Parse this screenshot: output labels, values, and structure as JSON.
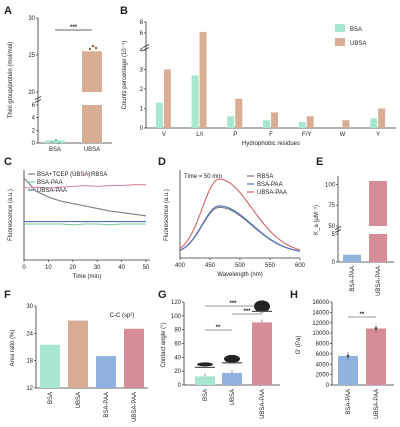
{
  "colors": {
    "bsa": "#a8e6cf",
    "ubsa": "#d9ad94",
    "blue": "#8fb2de",
    "pink": "#d78d97",
    "gray": "#7c7c7c",
    "red": "#d96060",
    "green": "#7dcb9a",
    "blueline": "#4f6fc2"
  },
  "panels": {
    "A": "A",
    "B": "B",
    "C": "C",
    "D": "D",
    "E": "E",
    "F": "F",
    "G": "G",
    "H": "H"
  },
  "chart_data": [
    {
      "id": "A",
      "type": "bar",
      "categories": [
        "BSA",
        "UBSA"
      ],
      "values": [
        0.4,
        25.5
      ],
      "ylabel": "Thiol group/protein (mol/mol)",
      "ylim": [
        0,
        30
      ],
      "yticks": [
        "0",
        "2",
        "4",
        "6",
        "20",
        "25",
        "30"
      ],
      "significance": "***"
    },
    {
      "id": "B",
      "type": "bar",
      "categories": [
        "V",
        "L/I",
        "P",
        "F",
        "F/Y",
        "W",
        "Y"
      ],
      "series": [
        {
          "name": "BSA",
          "values": [
            1.3,
            2.7,
            0.6,
            0.4,
            0.3,
            0.0,
            0.5
          ]
        },
        {
          "name": "UBSA",
          "values": [
            3.0,
            6.2,
            1.5,
            0.8,
            0.6,
            0.4,
            1.0
          ]
        }
      ],
      "ylabel": "Counts percentage (10⁻⁴)",
      "xlabel": "Hydrophobic residues",
      "ylim": [
        0,
        8
      ],
      "yticks": [
        "0",
        "1",
        "2",
        "3",
        "4",
        "6",
        "8"
      ]
    },
    {
      "id": "C",
      "type": "line",
      "series": [
        {
          "name": "BSA+TCEP (UBSA)",
          "x": [
            0,
            5,
            10,
            15,
            20,
            25,
            30,
            35,
            40,
            45,
            50
          ],
          "values": [
            100,
            84,
            77,
            72,
            69,
            66,
            63,
            60,
            58,
            56,
            54
          ]
        },
        {
          "name": "RBSA",
          "x": [
            0,
            5,
            10,
            15,
            20,
            25,
            30,
            35,
            40,
            45,
            50
          ],
          "values": [
            88,
            89,
            88,
            89,
            90,
            91,
            90,
            91,
            91,
            92,
            92
          ]
        },
        {
          "name": "BSA-PAA",
          "x": [
            0,
            5,
            10,
            15,
            20,
            25,
            30,
            35,
            40,
            45,
            50
          ],
          "values": [
            44,
            44,
            44,
            44,
            43,
            44,
            44,
            43,
            44,
            44,
            44
          ]
        },
        {
          "name": "UBSA-PAA",
          "x": [
            0,
            5,
            10,
            15,
            20,
            25,
            30,
            35,
            40,
            45,
            50
          ],
          "values": [
            47,
            47,
            47,
            47,
            47,
            47,
            47,
            47,
            47,
            47,
            47
          ]
        }
      ],
      "xlabel": "Time (min)",
      "ylabel": "Fluorescence (a.u.)",
      "xlim": [
        0,
        50
      ],
      "xticks": [
        "0",
        "10",
        "20",
        "30",
        "40",
        "50"
      ]
    },
    {
      "id": "D",
      "type": "line",
      "annotation": "Time = 50 min",
      "series": [
        {
          "name": "RBSA",
          "peak": 62
        },
        {
          "name": "BSA-PAA",
          "peak": 64
        },
        {
          "name": "UBSA-PAA",
          "peak": 100
        }
      ],
      "xlabel": "Wavelength (nm)",
      "ylabel": "Fluorescence (a.u.)",
      "xlim": [
        400,
        600
      ],
      "xticks": [
        "400",
        "450",
        "500",
        "550",
        "600"
      ],
      "peak_x": 465
    },
    {
      "id": "E",
      "type": "bar",
      "categories": [
        "BSA-PAA",
        "UBSA-PAA"
      ],
      "values": [
        1.3,
        104
      ],
      "ylabel": "K_a (μM⁻¹)",
      "ylim": [
        0,
        110
      ],
      "yticks": [
        "0",
        "5",
        "50",
        "75",
        "100"
      ]
    },
    {
      "id": "F",
      "type": "bar",
      "title": "C-C (sp²)",
      "categories": [
        "BSA",
        "UBSA",
        "BSA-PAA",
        "UBSA-PAA"
      ],
      "values": [
        21.5,
        26.8,
        19.0,
        25.0
      ],
      "ylabel": "Area ratio (%)",
      "ylim": [
        12,
        30
      ],
      "yticks": [
        "12",
        "18",
        "24",
        "30"
      ]
    },
    {
      "id": "G",
      "type": "bar",
      "categories": [
        "BSA",
        "UBSA",
        "UBSA-PAA"
      ],
      "values": [
        12.5,
        17.5,
        90.5
      ],
      "ylabel": "Contact angle (°)",
      "ylim": [
        0,
        120
      ],
      "yticks": [
        "0",
        "20",
        "40",
        "60",
        "80",
        "100",
        "120"
      ],
      "significance": [
        "**",
        "***",
        "***"
      ]
    },
    {
      "id": "H",
      "type": "bar",
      "categories": [
        "BSA-PAA",
        "UBSA-PAA"
      ],
      "values": [
        5600,
        10900
      ],
      "ylabel": "G' (Pa)",
      "ylim": [
        0,
        16000
      ],
      "yticks": [
        "0",
        "2000",
        "4000",
        "6000",
        "8000",
        "10000",
        "12000",
        "14000",
        "16000"
      ],
      "significance": "**"
    }
  ]
}
